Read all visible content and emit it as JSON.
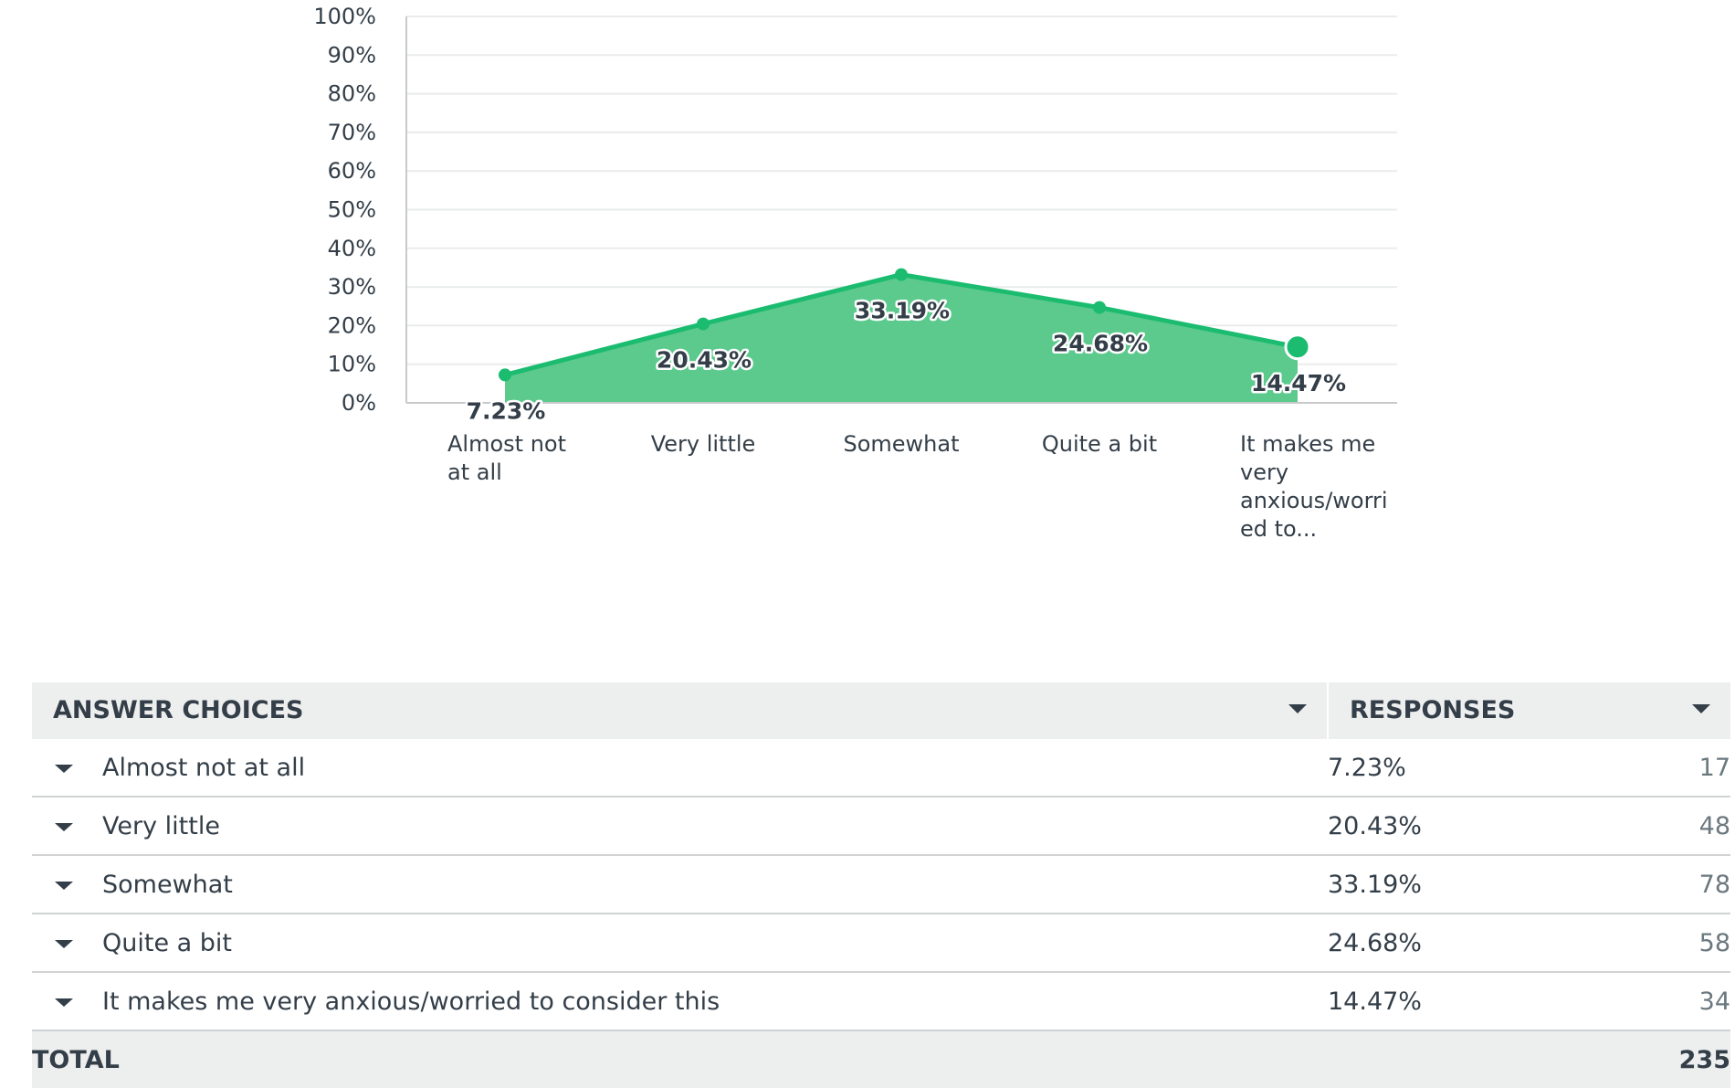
{
  "chart_data": {
    "type": "area",
    "categories": [
      [
        "Almost not",
        "at all"
      ],
      [
        "Very little"
      ],
      [
        "Somewhat"
      ],
      [
        "Quite a bit"
      ],
      [
        "It makes me",
        "very",
        "anxious/worri",
        "ed to..."
      ]
    ],
    "values": [
      7.23,
      20.43,
      33.19,
      24.68,
      14.47
    ],
    "data_labels": [
      "7.23%",
      "20.43%",
      "33.19%",
      "24.68%",
      "14.47%"
    ],
    "yticks": [
      "0%",
      "10%",
      "20%",
      "30%",
      "40%",
      "50%",
      "60%",
      "70%",
      "80%",
      "90%",
      "100%"
    ],
    "ylim": [
      0,
      100
    ],
    "grid": true,
    "colors": {
      "line": "#1bbc6f",
      "fill": "#5cc98d",
      "axis": "#c7c9cb",
      "grid": "#eaebec"
    }
  },
  "table": {
    "header": {
      "choices": "ANSWER CHOICES",
      "responses": "RESPONSES"
    },
    "rows": [
      {
        "choice": "Almost not at all",
        "percent": "7.23%",
        "count": "17"
      },
      {
        "choice": "Very little",
        "percent": "20.43%",
        "count": "48"
      },
      {
        "choice": "Somewhat",
        "percent": "33.19%",
        "count": "78"
      },
      {
        "choice": "Quite a bit",
        "percent": "24.68%",
        "count": "58"
      },
      {
        "choice": "It makes me very anxious/worried to consider this",
        "percent": "14.47%",
        "count": "34"
      }
    ],
    "total": {
      "label": "TOTAL",
      "value": "235"
    }
  },
  "icons": {
    "sort": "sort-down-arrow-icon",
    "expand": "expand-arrow-icon"
  }
}
